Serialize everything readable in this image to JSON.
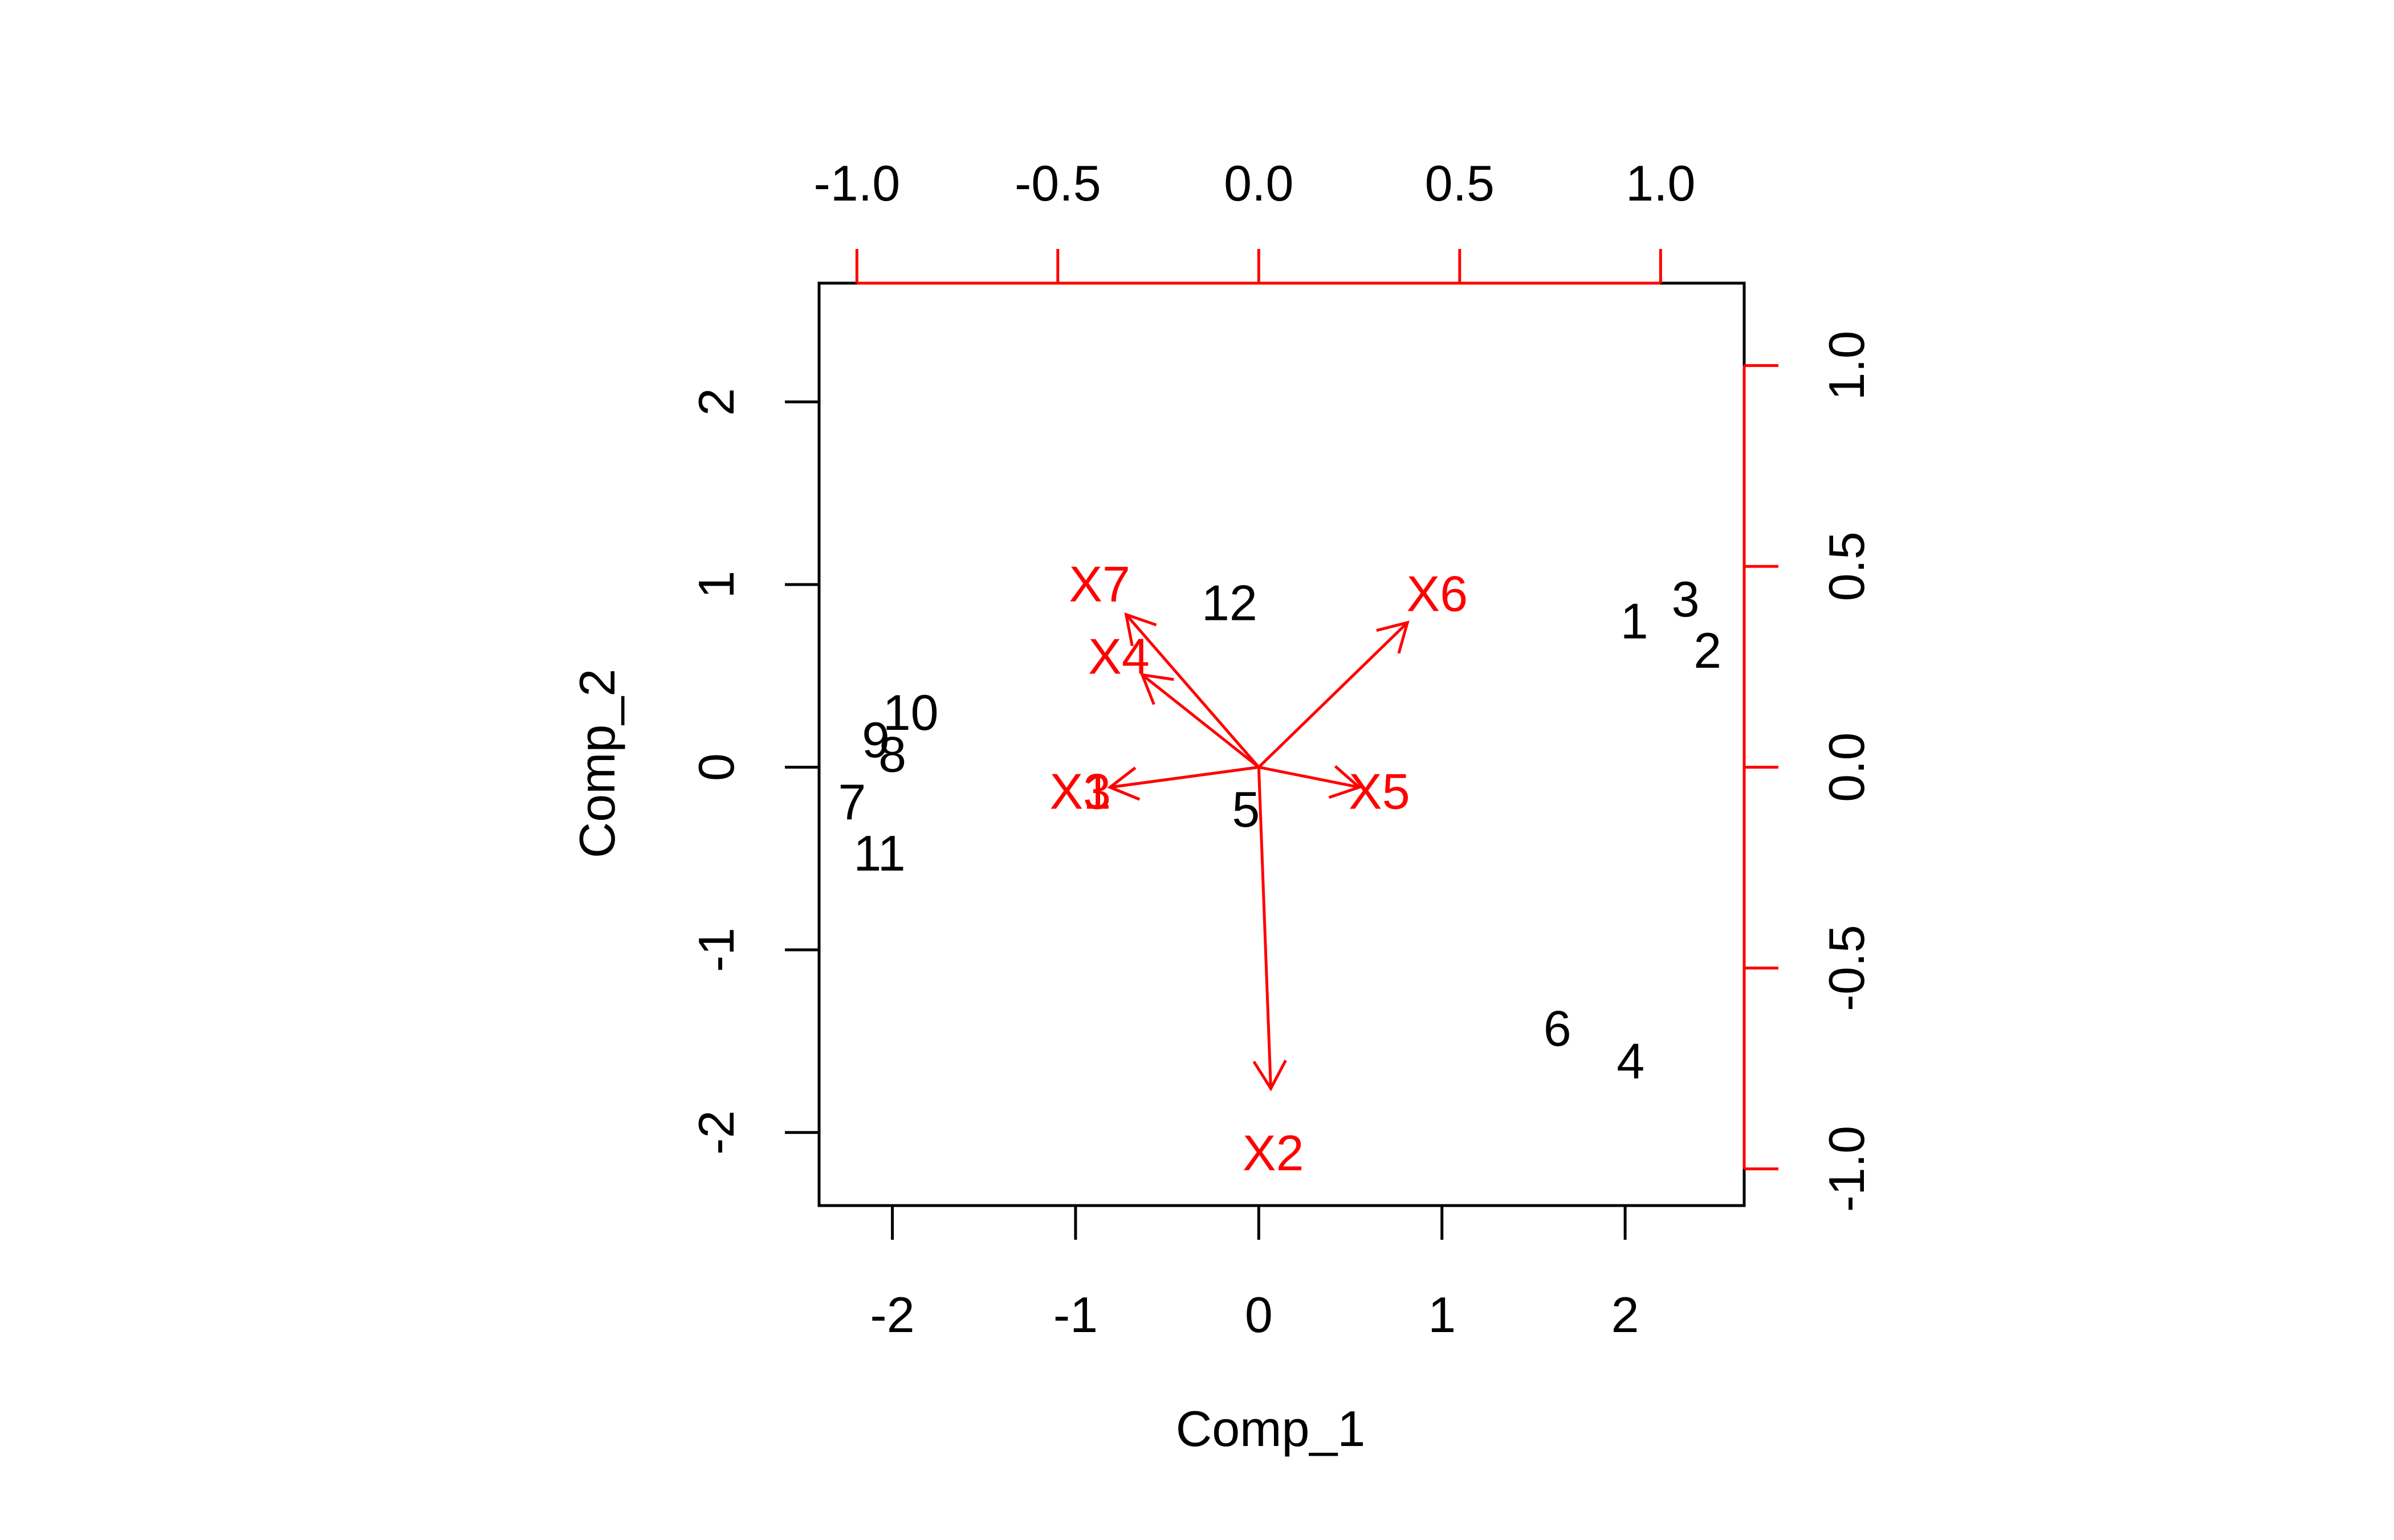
{
  "chart_data": {
    "type": "scatter",
    "subtype": "biplot",
    "title": "",
    "xlabel": "Comp_1",
    "ylabel": "Comp_2",
    "xlim": [
      -2.4,
      2.65
    ],
    "ylim": [
      -2.4,
      2.65
    ],
    "x_ticks": [
      -2,
      -1,
      0,
      1,
      2
    ],
    "y_ticks": [
      -2,
      -1,
      0,
      1,
      2
    ],
    "secondary_xlim": [
      -1.0,
      1.0
    ],
    "secondary_ylim": [
      -1.0,
      1.0
    ],
    "secondary_x_ticks": [
      "-1.0",
      "-0.5",
      "0.0",
      "0.5",
      "1.0"
    ],
    "secondary_y_ticks": [
      "-1.0",
      "-0.5",
      "0.0",
      "0.5",
      "1.0"
    ],
    "grid": false,
    "legend": "none",
    "observations": [
      {
        "label": "1",
        "x": 2.05,
        "y": 0.8
      },
      {
        "label": "2",
        "x": 2.45,
        "y": 0.64
      },
      {
        "label": "3",
        "x": 2.33,
        "y": 0.92
      },
      {
        "label": "4",
        "x": 2.03,
        "y": -1.61
      },
      {
        "label": "5",
        "x": -0.07,
        "y": -0.23
      },
      {
        "label": "6",
        "x": 1.63,
        "y": -1.43
      },
      {
        "label": "7",
        "x": -2.22,
        "y": -0.19
      },
      {
        "label": "8",
        "x": -2.0,
        "y": 0.07
      },
      {
        "label": "9",
        "x": -2.09,
        "y": 0.15
      },
      {
        "label": "10",
        "x": -1.9,
        "y": 0.3
      },
      {
        "label": "11",
        "x": -2.07,
        "y": -0.47
      },
      {
        "label": "12",
        "x": -0.16,
        "y": 0.9
      }
    ],
    "variables": [
      {
        "label": "X1",
        "x": -0.37,
        "y": -0.05
      },
      {
        "label": "X2",
        "x": 0.03,
        "y": -0.8
      },
      {
        "label": "X3",
        "x": -0.37,
        "y": -0.05
      },
      {
        "label": "X4",
        "x": -0.29,
        "y": 0.23
      },
      {
        "label": "X5",
        "x": 0.25,
        "y": -0.05
      },
      {
        "label": "X6",
        "x": 0.37,
        "y": 0.36
      },
      {
        "label": "X7",
        "x": -0.33,
        "y": 0.38
      }
    ],
    "variable_label_scale": 1.2,
    "colors": {
      "observations": "#000000",
      "variables": "#ff0000",
      "axes": "#000000"
    }
  }
}
